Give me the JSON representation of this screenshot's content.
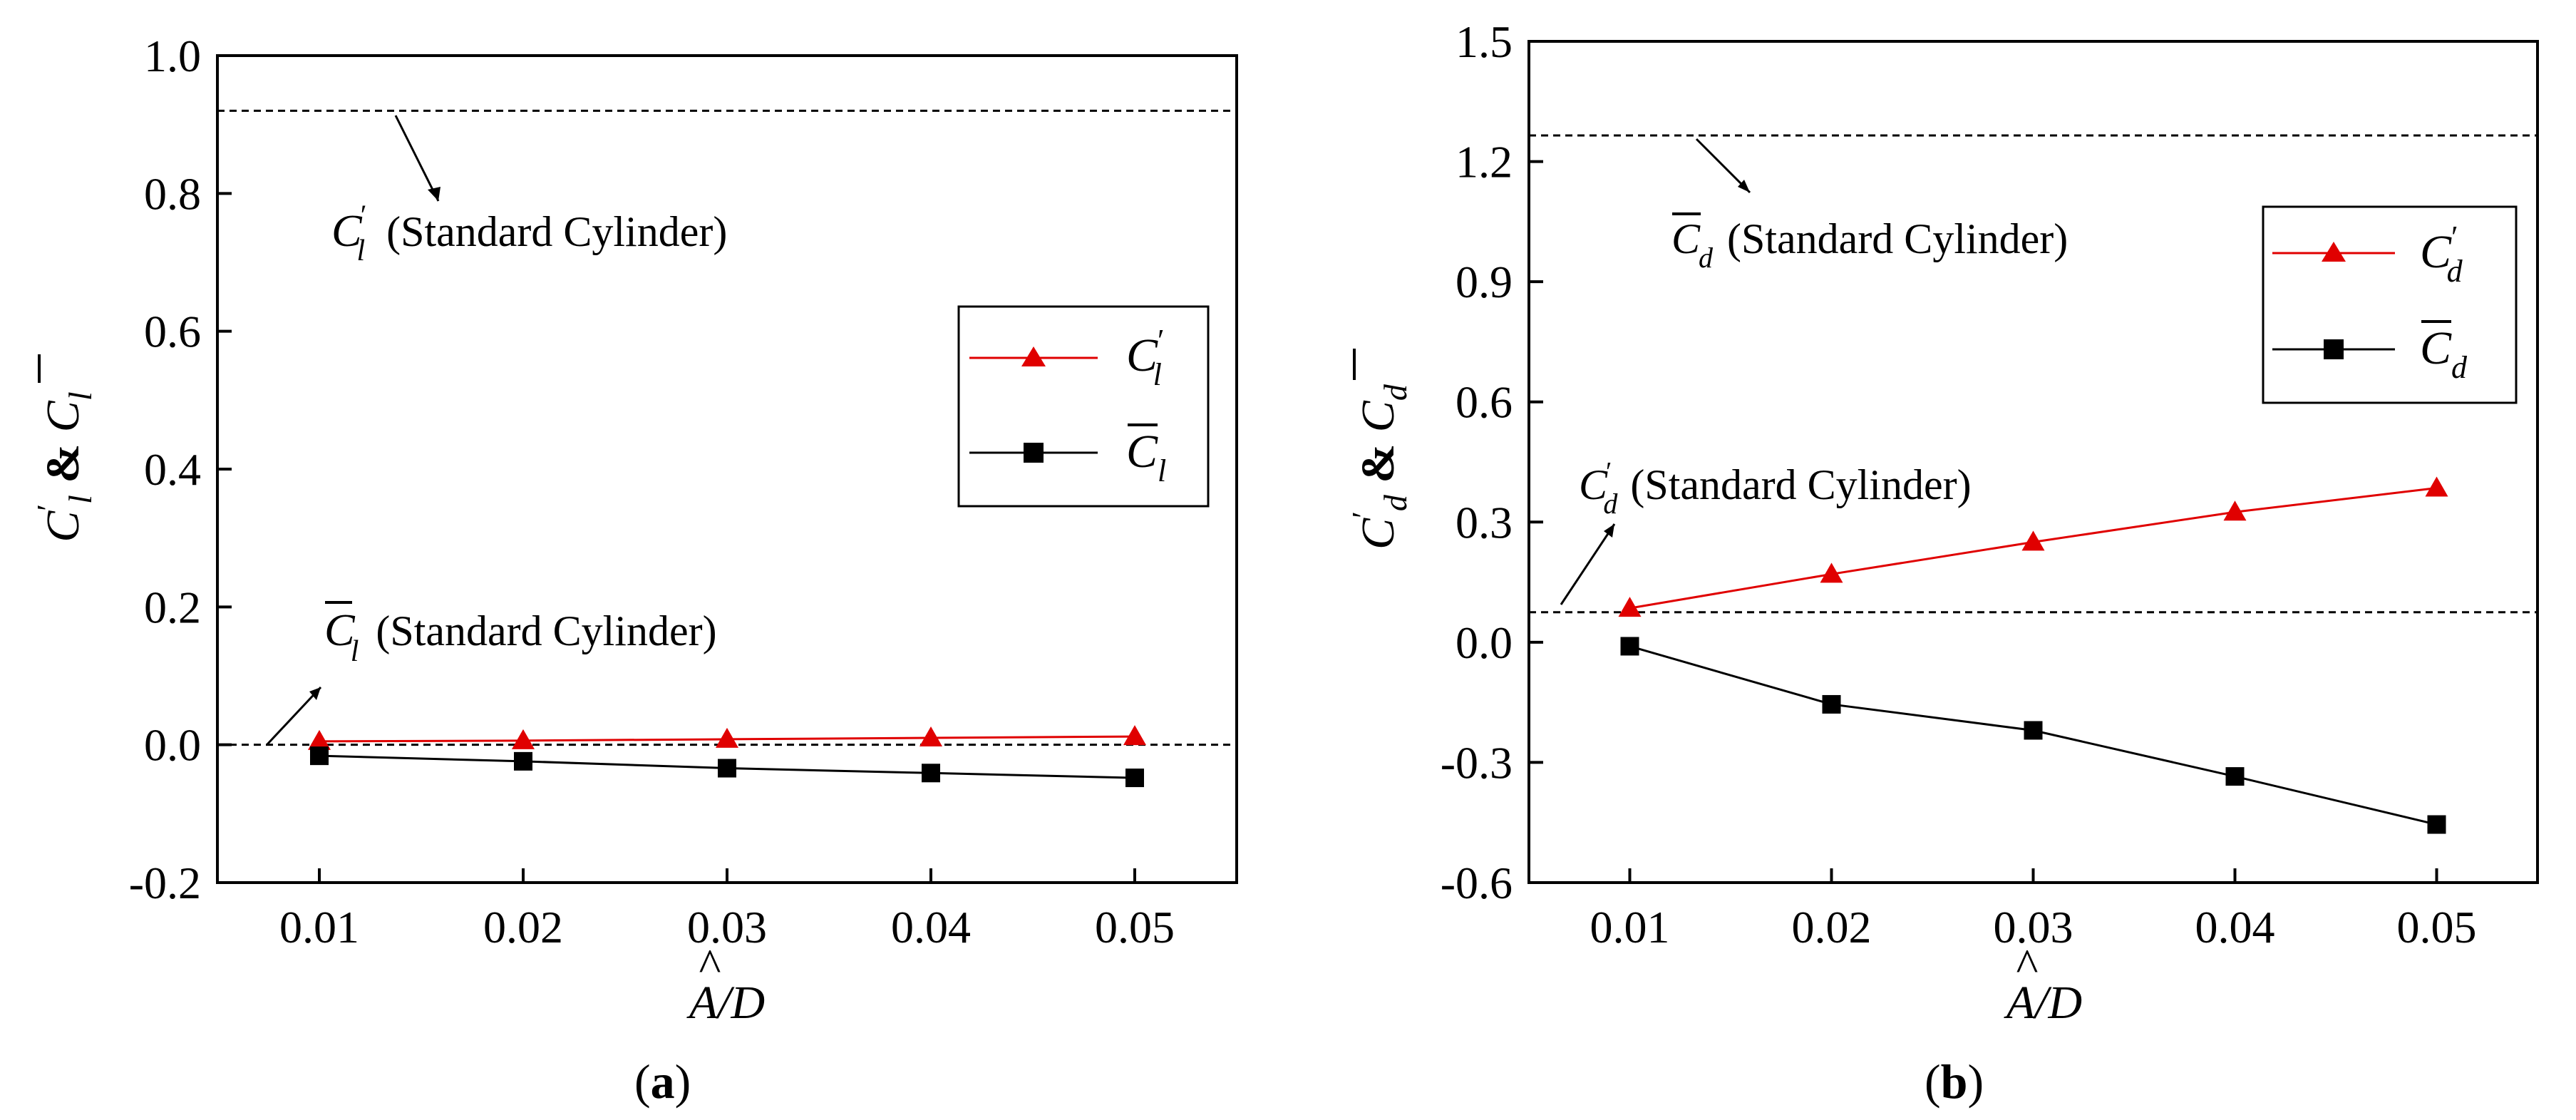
{
  "chart_data": [
    {
      "type": "line",
      "panel_label": "a",
      "panel_label_text": "(a)",
      "x": [
        0.01,
        0.02,
        0.03,
        0.04,
        0.05
      ],
      "x_tick_labels": [
        "0.01",
        "0.02",
        "0.03",
        "0.04",
        "0.05"
      ],
      "xlim": [
        0.005,
        0.055
      ],
      "ylim": [
        -0.2,
        1.0
      ],
      "y_ticks": [
        -0.2,
        0.0,
        0.2,
        0.4,
        0.6,
        0.8,
        1.0
      ],
      "y_tick_labels": [
        "-0.2",
        "0.0",
        "0.2",
        "0.4",
        "0.6",
        "0.8",
        "1.0"
      ],
      "xlabel": "Â/D",
      "ylabel": "C′l & C̄l",
      "legend_position": "right-middle",
      "series": [
        {
          "name": "C′l",
          "color": "#e00000",
          "marker": "triangle",
          "values": [
            0.005,
            0.006,
            0.008,
            0.01,
            0.012
          ]
        },
        {
          "name": "C̄l",
          "color": "#000000",
          "marker": "square",
          "values": [
            -0.016,
            -0.024,
            -0.034,
            -0.041,
            -0.048
          ]
        }
      ],
      "reference_lines": [
        {
          "name": "C′l (Standard Cylinder)",
          "y": 0.92
        },
        {
          "name": "C̄l (Standard Cylinder)",
          "y": 0.0
        }
      ],
      "annotations": [
        {
          "symbol": "C",
          "sub": "l",
          "mark": "′",
          "text": "(Standard Cylinder)"
        },
        {
          "symbol": "C",
          "sub": "l",
          "mark": "bar",
          "text": "(Standard Cylinder)"
        }
      ]
    },
    {
      "type": "line",
      "panel_label": "b",
      "panel_label_text": "(b)",
      "x": [
        0.01,
        0.02,
        0.03,
        0.04,
        0.05
      ],
      "x_tick_labels": [
        "0.01",
        "0.02",
        "0.03",
        "0.04",
        "0.05"
      ],
      "xlim": [
        0.005,
        0.055
      ],
      "ylim": [
        -0.6,
        1.5
      ],
      "y_ticks": [
        -0.6,
        -0.3,
        0.0,
        0.3,
        0.6,
        0.9,
        1.2,
        1.5
      ],
      "y_tick_labels": [
        "-0.6",
        "-0.3",
        "0.0",
        "0.3",
        "0.6",
        "0.9",
        "1.2",
        "1.5"
      ],
      "xlabel": "Â/D",
      "ylabel": "C′d & C̄d",
      "legend_position": "top-right",
      "series": [
        {
          "name": "C′d",
          "color": "#e00000",
          "marker": "triangle",
          "values": [
            0.085,
            0.17,
            0.25,
            0.325,
            0.385
          ]
        },
        {
          "name": "C̄d",
          "color": "#000000",
          "marker": "square",
          "values": [
            -0.01,
            -0.155,
            -0.22,
            -0.335,
            -0.455
          ]
        }
      ],
      "reference_lines": [
        {
          "name": "C̄d (Standard Cylinder)",
          "y": 1.265
        },
        {
          "name": "C′d (Standard Cylinder)",
          "y": 0.075
        }
      ],
      "annotations": [
        {
          "symbol": "C",
          "sub": "d",
          "mark": "bar",
          "text": "(Standard Cylinder)"
        },
        {
          "symbol": "C",
          "sub": "d",
          "mark": "′",
          "text": "(Standard Cylinder)"
        }
      ]
    }
  ]
}
